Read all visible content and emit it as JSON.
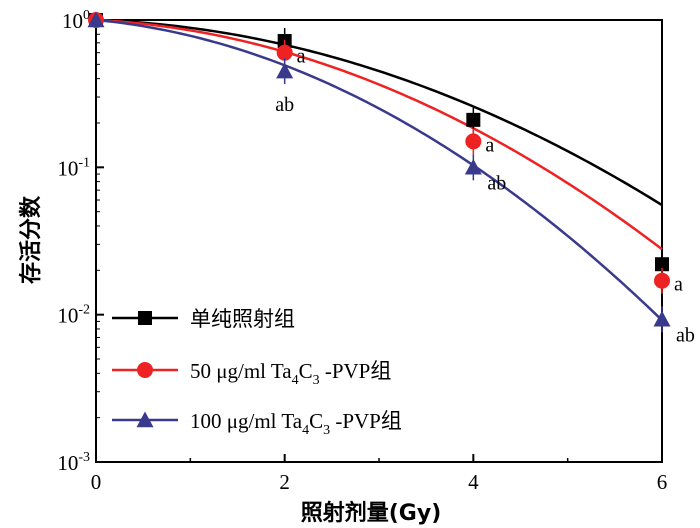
{
  "chart_data": {
    "type": "scatter",
    "xlabel": "照射剂量(Gy)",
    "ylabel": "存活分数",
    "xlim": [
      0,
      6
    ],
    "ylim": [
      0.001,
      1
    ],
    "yscale": "log",
    "xticks": [
      "0",
      "2",
      "4",
      "6"
    ],
    "yticks": [
      {
        "base": "10",
        "exp": "0",
        "value": 1
      },
      {
        "base": "10",
        "exp": "-1",
        "value": 0.1
      },
      {
        "base": "10",
        "exp": "-2",
        "value": 0.01
      },
      {
        "base": "10",
        "exp": "-3",
        "value": 0.001
      }
    ],
    "grid": false,
    "legend_position": "bottom-left",
    "series": [
      {
        "name": "单纯照射组",
        "marker": "square",
        "color": "#000000",
        "line_color": "#000000",
        "x": [
          0,
          2,
          4,
          6
        ],
        "y": [
          1.0,
          0.72,
          0.21,
          0.022
        ],
        "fit_curve": {
          "model": "linear-quadratic",
          "alpha": 0.05,
          "beta": 0.072
        },
        "point_labels": [
          "",
          "",
          "",
          ""
        ]
      },
      {
        "name_parts": {
          "pre": "50 μg/ml Ta",
          "sub1": "4",
          "mid": "C",
          "sub2": "3",
          "post": " -PVP组"
        },
        "marker": "circle",
        "color": "#ee2222",
        "line_color": "#ee2222",
        "x": [
          0,
          2,
          4,
          6
        ],
        "y": [
          1.0,
          0.6,
          0.15,
          0.017
        ],
        "fit_curve": {
          "model": "linear-quadratic",
          "alpha": 0.075,
          "beta": 0.087
        },
        "point_labels": [
          "",
          "a",
          "a",
          "a"
        ]
      },
      {
        "name_parts": {
          "pre": "100 μg/ml Ta",
          "sub1": "4",
          "mid": "C",
          "sub2": "3",
          "post": " -PVP组"
        },
        "marker": "triangle",
        "color": "#3a3a8c",
        "line_color": "#3a3a8c",
        "x": [
          0,
          2,
          4,
          6
        ],
        "y": [
          1.0,
          0.45,
          0.1,
          0.0093
        ],
        "fit_curve": {
          "model": "linear-quadratic",
          "alpha": 0.14,
          "beta": 0.107
        },
        "point_labels": [
          "",
          "ab",
          "ab",
          "ab"
        ]
      }
    ]
  }
}
